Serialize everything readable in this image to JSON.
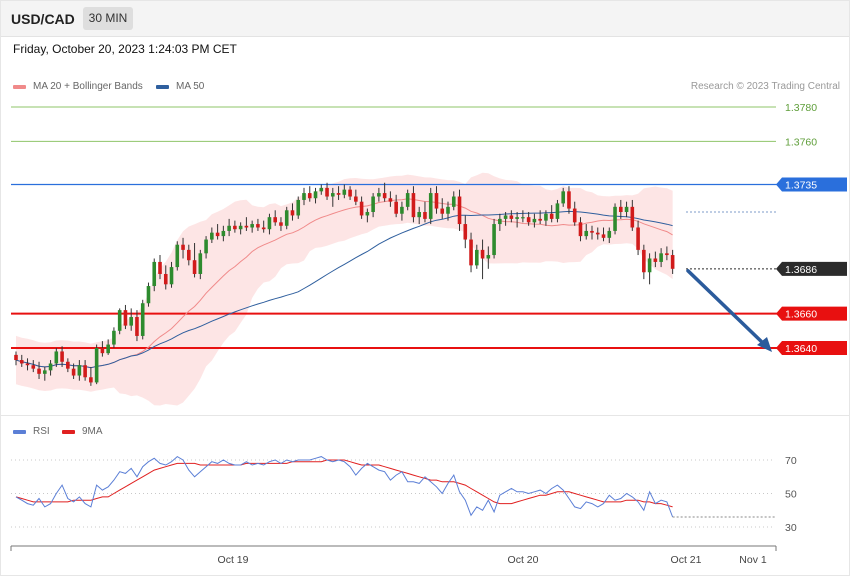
{
  "header": {
    "symbol": "USD/CAD",
    "timeframe": "30 MIN"
  },
  "datetime": "Friday, October 20, 2023 1:24:03 PM CET",
  "legend": {
    "ma20_label": "MA 20 + Bollinger Bands",
    "ma50_label": "MA 50",
    "credit": "Research © 2023 Trading Central",
    "ma20_color": "#f08a8a",
    "ma50_color": "#2f5f9e"
  },
  "rsi_legend": {
    "rsi_label": "RSI",
    "ma9_label": "9MA",
    "rsi_color": "#5b7fd6",
    "ma9_color": "#e02020"
  },
  "chart_data": [
    {
      "type": "candlestick",
      "title": "",
      "ylim": [
        1.3615,
        1.379
      ],
      "x_labels": [
        "Oct 19",
        "Oct 20",
        "Oct 21",
        "Nov 1"
      ],
      "levels": [
        {
          "value": "1.3780",
          "kind": "resistance",
          "color": "#8fc46a"
        },
        {
          "value": "1.3760",
          "kind": "resistance",
          "color": "#8fc46a"
        },
        {
          "value": "1.3735",
          "kind": "pivot",
          "color": "#2a6fdc"
        },
        {
          "value": "1.3686",
          "kind": "last",
          "color": "#2b2b2b"
        },
        {
          "value": "1.3660",
          "kind": "support",
          "color": "#e81010"
        },
        {
          "value": "1.3640",
          "kind": "support",
          "color": "#e81010"
        }
      ],
      "forecast_arrow": {
        "from": 1.3686,
        "to": 1.364,
        "color": "#2b5b9c"
      },
      "ohlc": [
        [
          1.3636,
          1.3638,
          1.363,
          1.3633
        ],
        [
          1.3633,
          1.3636,
          1.3629,
          1.3631
        ],
        [
          1.3631,
          1.3634,
          1.3627,
          1.363
        ],
        [
          1.363,
          1.3633,
          1.3626,
          1.3628
        ],
        [
          1.3628,
          1.3632,
          1.3622,
          1.3625
        ],
        [
          1.3625,
          1.3629,
          1.3621,
          1.3627
        ],
        [
          1.3627,
          1.3633,
          1.3624,
          1.3631
        ],
        [
          1.3631,
          1.364,
          1.3629,
          1.3638
        ],
        [
          1.3638,
          1.3641,
          1.3629,
          1.3632
        ],
        [
          1.3632,
          1.3634,
          1.3626,
          1.3628
        ],
        [
          1.3628,
          1.3631,
          1.3622,
          1.3624
        ],
        [
          1.3624,
          1.3633,
          1.3621,
          1.363
        ],
        [
          1.363,
          1.3633,
          1.3621,
          1.3623
        ],
        [
          1.3623,
          1.3629,
          1.3618,
          1.362
        ],
        [
          1.362,
          1.3642,
          1.3619,
          1.364
        ],
        [
          1.364,
          1.3644,
          1.3635,
          1.3637
        ],
        [
          1.3637,
          1.3645,
          1.3636,
          1.3642
        ],
        [
          1.3642,
          1.3652,
          1.364,
          1.365
        ],
        [
          1.365,
          1.3663,
          1.3648,
          1.3662
        ],
        [
          1.3662,
          1.3665,
          1.3651,
          1.3653
        ],
        [
          1.3653,
          1.3663,
          1.365,
          1.3658
        ],
        [
          1.3658,
          1.3662,
          1.3644,
          1.3647
        ],
        [
          1.3647,
          1.3668,
          1.3645,
          1.3666
        ],
        [
          1.3666,
          1.3678,
          1.3664,
          1.3676
        ],
        [
          1.3676,
          1.3692,
          1.3673,
          1.369
        ],
        [
          1.369,
          1.3694,
          1.368,
          1.3683
        ],
        [
          1.3683,
          1.3688,
          1.3674,
          1.3677
        ],
        [
          1.3677,
          1.369,
          1.3675,
          1.3687
        ],
        [
          1.3687,
          1.3702,
          1.3685,
          1.37
        ],
        [
          1.37,
          1.3704,
          1.3692,
          1.3697
        ],
        [
          1.3697,
          1.37,
          1.3688,
          1.3691
        ],
        [
          1.3691,
          1.3701,
          1.3681,
          1.3683
        ],
        [
          1.3683,
          1.3697,
          1.368,
          1.3695
        ],
        [
          1.3695,
          1.3705,
          1.3692,
          1.3703
        ],
        [
          1.3703,
          1.371,
          1.3701,
          1.3707
        ],
        [
          1.3707,
          1.3712,
          1.3703,
          1.3705
        ],
        [
          1.3705,
          1.3711,
          1.3702,
          1.3708
        ],
        [
          1.3708,
          1.3715,
          1.3705,
          1.3711
        ],
        [
          1.3711,
          1.3714,
          1.3707,
          1.3709
        ],
        [
          1.3709,
          1.3713,
          1.3706,
          1.3711
        ],
        [
          1.3711,
          1.3716,
          1.3708,
          1.371
        ],
        [
          1.371,
          1.3714,
          1.3707,
          1.3712
        ],
        [
          1.3712,
          1.3715,
          1.3708,
          1.371
        ],
        [
          1.371,
          1.3714,
          1.3707,
          1.3709
        ],
        [
          1.3709,
          1.3718,
          1.3706,
          1.3716
        ],
        [
          1.3716,
          1.372,
          1.3711,
          1.3713
        ],
        [
          1.3713,
          1.3716,
          1.3708,
          1.3711
        ],
        [
          1.3711,
          1.3722,
          1.3709,
          1.372
        ],
        [
          1.372,
          1.3724,
          1.3714,
          1.3717
        ],
        [
          1.3717,
          1.3728,
          1.3715,
          1.3726
        ],
        [
          1.3726,
          1.3733,
          1.3723,
          1.373
        ],
        [
          1.373,
          1.3734,
          1.3725,
          1.3727
        ],
        [
          1.3727,
          1.3733,
          1.3724,
          1.3731
        ],
        [
          1.3731,
          1.3735,
          1.3729,
          1.3733
        ],
        [
          1.3733,
          1.3736,
          1.3726,
          1.3728
        ],
        [
          1.3728,
          1.3733,
          1.3722,
          1.373
        ],
        [
          1.373,
          1.3734,
          1.3726,
          1.3729
        ],
        [
          1.3729,
          1.3735,
          1.3727,
          1.3732
        ],
        [
          1.3732,
          1.3734,
          1.3726,
          1.3728
        ],
        [
          1.3728,
          1.3732,
          1.3723,
          1.3725
        ],
        [
          1.3725,
          1.3728,
          1.3715,
          1.3717
        ],
        [
          1.3717,
          1.3721,
          1.3713,
          1.3719
        ],
        [
          1.3719,
          1.373,
          1.3716,
          1.3728
        ],
        [
          1.3728,
          1.3733,
          1.3725,
          1.373
        ],
        [
          1.373,
          1.3736,
          1.3725,
          1.3727
        ],
        [
          1.3727,
          1.3731,
          1.3722,
          1.3725
        ],
        [
          1.3725,
          1.3729,
          1.3716,
          1.3718
        ],
        [
          1.3718,
          1.3725,
          1.3714,
          1.3722
        ],
        [
          1.3722,
          1.3732,
          1.372,
          1.373
        ],
        [
          1.373,
          1.3734,
          1.3713,
          1.3716
        ],
        [
          1.3716,
          1.3722,
          1.3712,
          1.3719
        ],
        [
          1.3719,
          1.3725,
          1.3713,
          1.3715
        ],
        [
          1.3715,
          1.3733,
          1.3712,
          1.373
        ],
        [
          1.373,
          1.3734,
          1.3718,
          1.3721
        ],
        [
          1.3721,
          1.3727,
          1.3715,
          1.3718
        ],
        [
          1.3718,
          1.3725,
          1.3714,
          1.3722
        ],
        [
          1.3722,
          1.3731,
          1.372,
          1.3728
        ],
        [
          1.3728,
          1.3732,
          1.3708,
          1.3712
        ],
        [
          1.3712,
          1.3717,
          1.3698,
          1.3703
        ],
        [
          1.3703,
          1.3707,
          1.3684,
          1.3688
        ],
        [
          1.3688,
          1.37,
          1.3686,
          1.3697
        ],
        [
          1.3697,
          1.3703,
          1.368,
          1.3692
        ],
        [
          1.3692,
          1.3699,
          1.3686,
          1.3694
        ],
        [
          1.3694,
          1.3715,
          1.3692,
          1.3712
        ],
        [
          1.3712,
          1.3718,
          1.3708,
          1.3715
        ],
        [
          1.3715,
          1.3719,
          1.3711,
          1.3717
        ],
        [
          1.3717,
          1.372,
          1.3713,
          1.3715
        ],
        [
          1.3715,
          1.3719,
          1.371,
          1.3716
        ],
        [
          1.3716,
          1.372,
          1.3713,
          1.3716
        ],
        [
          1.3716,
          1.3719,
          1.3711,
          1.3713
        ],
        [
          1.3713,
          1.3718,
          1.371,
          1.3715
        ],
        [
          1.3715,
          1.372,
          1.3712,
          1.3714
        ],
        [
          1.3714,
          1.372,
          1.3711,
          1.3718
        ],
        [
          1.3718,
          1.3723,
          1.3713,
          1.3715
        ],
        [
          1.3715,
          1.3726,
          1.3713,
          1.3724
        ],
        [
          1.3724,
          1.3733,
          1.3722,
          1.3731
        ],
        [
          1.3731,
          1.3734,
          1.3718,
          1.3721
        ],
        [
          1.3721,
          1.3725,
          1.3711,
          1.3713
        ],
        [
          1.3713,
          1.3716,
          1.3702,
          1.3705
        ],
        [
          1.3705,
          1.3712,
          1.3703,
          1.3708
        ],
        [
          1.3708,
          1.3711,
          1.3703,
          1.3707
        ],
        [
          1.3707,
          1.371,
          1.3703,
          1.3706
        ],
        [
          1.3706,
          1.371,
          1.3702,
          1.3704
        ],
        [
          1.3704,
          1.371,
          1.3701,
          1.3708
        ],
        [
          1.3708,
          1.3724,
          1.3706,
          1.3722
        ],
        [
          1.3722,
          1.3726,
          1.3715,
          1.3719
        ],
        [
          1.3719,
          1.3725,
          1.3716,
          1.3722
        ],
        [
          1.3722,
          1.3726,
          1.3708,
          1.371
        ],
        [
          1.371,
          1.3714,
          1.3694,
          1.3697
        ],
        [
          1.3697,
          1.37,
          1.368,
          1.3684
        ],
        [
          1.3684,
          1.3695,
          1.3677,
          1.3692
        ],
        [
          1.3692,
          1.3696,
          1.3687,
          1.369
        ],
        [
          1.369,
          1.3698,
          1.3687,
          1.3695
        ],
        [
          1.3695,
          1.3699,
          1.3691,
          1.3694
        ],
        [
          1.3694,
          1.3697,
          1.3683,
          1.3686
        ]
      ]
    },
    {
      "type": "line",
      "title": "",
      "series": [
        {
          "name": "RSI",
          "values": [
            48,
            46,
            44,
            43,
            47,
            42,
            44,
            50,
            55,
            47,
            45,
            48,
            44,
            42,
            55,
            52,
            54,
            58,
            63,
            62,
            65,
            60,
            66,
            69,
            71,
            68,
            67,
            69,
            72,
            70,
            64,
            60,
            63,
            66,
            69,
            68,
            70,
            68,
            67,
            67,
            69,
            67,
            68,
            67,
            69,
            70,
            68,
            70,
            69,
            70,
            70,
            70,
            71,
            72,
            70,
            69,
            70,
            69,
            66,
            61,
            65,
            68,
            66,
            64,
            63,
            58,
            61,
            63,
            57,
            57,
            56,
            60,
            57,
            54,
            50,
            56,
            61,
            51,
            46,
            37,
            42,
            40,
            46,
            39,
            49,
            51,
            53,
            51,
            51,
            50,
            51,
            52,
            50,
            53,
            55,
            52,
            47,
            42,
            41,
            45,
            44,
            42,
            44,
            49,
            46,
            47,
            50,
            48,
            45,
            40,
            51,
            44,
            46,
            45,
            36
          ]
        },
        {
          "name": "9MA",
          "values": [
            48,
            47,
            46,
            45,
            45,
            45,
            45,
            45,
            45,
            45,
            46,
            46,
            46,
            46,
            47,
            48,
            48,
            50,
            52,
            54,
            56,
            58,
            60,
            62,
            64,
            65,
            66,
            67,
            68,
            68,
            68,
            68,
            67,
            67,
            67,
            67,
            67,
            67,
            67,
            67,
            68,
            68,
            68,
            68,
            68,
            68,
            68,
            68,
            69,
            69,
            69,
            69,
            69,
            69,
            70,
            70,
            70,
            70,
            69,
            68,
            67,
            67,
            67,
            67,
            66,
            65,
            64,
            63,
            62,
            61,
            60,
            59,
            58,
            58,
            57,
            57,
            57,
            56,
            55,
            53,
            51,
            49,
            47,
            45,
            44,
            44,
            44,
            45,
            46,
            47,
            48,
            49,
            49,
            50,
            51,
            51,
            51,
            50,
            49,
            48,
            47,
            46,
            45,
            45,
            45,
            45,
            46,
            46,
            46,
            45,
            45,
            44,
            44,
            43,
            42
          ]
        }
      ],
      "ylim": [
        20,
        80
      ],
      "levels": [
        "70",
        "50",
        "30"
      ]
    }
  ]
}
